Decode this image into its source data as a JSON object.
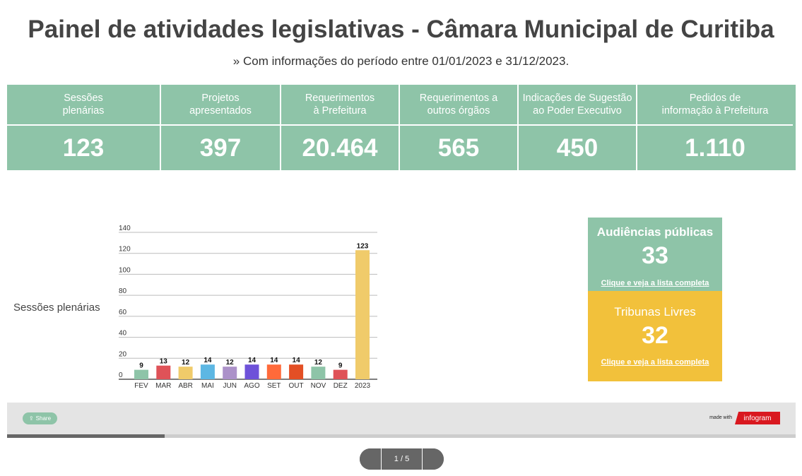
{
  "header": {
    "title": "Painel de atividades legislativas - Câmara Municipal de Curitiba",
    "subtitle": "» Com informações do período entre 01/01/2023 e 31/12/2023."
  },
  "stats": [
    {
      "label": "Sessões\nplenárias",
      "value": "123"
    },
    {
      "label": "Projetos\napresentados",
      "value": "397"
    },
    {
      "label": "Requerimentos\nà Prefeitura",
      "value": "20.464"
    },
    {
      "label": "Requerimentos a\noutros órgãos",
      "value": "565"
    },
    {
      "label": "Indicações de Sugestão\nao Poder Executivo",
      "value": "450"
    },
    {
      "label": "Pedidos de\ninformação à Prefeitura",
      "value": "1.110"
    }
  ],
  "chart_label": "Sessões plenárias",
  "chart_data": {
    "type": "bar",
    "categories": [
      "FEV",
      "MAR",
      "ABR",
      "MAI",
      "JUN",
      "AGO",
      "SET",
      "OUT",
      "NOV",
      "DEZ",
      "2023"
    ],
    "values": [
      9,
      13,
      12,
      14,
      12,
      14,
      14,
      14,
      12,
      9,
      123
    ],
    "colors": [
      "#8ec4a8",
      "#df5258",
      "#f0cb6a",
      "#5db7e3",
      "#ac92c9",
      "#6e52d9",
      "#ff6a3a",
      "#e34f25",
      "#8ec4a8",
      "#df5258",
      "#f0cb6a"
    ],
    "ylim": [
      0,
      140
    ],
    "yticks": [
      0,
      20,
      40,
      60,
      80,
      100,
      120,
      140
    ],
    "grid": true
  },
  "side": {
    "audiencias": {
      "title": "Audiências públicas",
      "value": "33",
      "link": "Clique e veja a lista completa",
      "color": "#8ec4a8"
    },
    "tribunas": {
      "title": "Tribunas Livres",
      "value": "32",
      "link": "Clique e veja a lista completa",
      "color": "#f2c13b"
    }
  },
  "footer": {
    "share": "Share",
    "made_with": "made with",
    "brand": "infogram",
    "progress_percent": 20
  },
  "pager": {
    "label": "1 / 5"
  }
}
